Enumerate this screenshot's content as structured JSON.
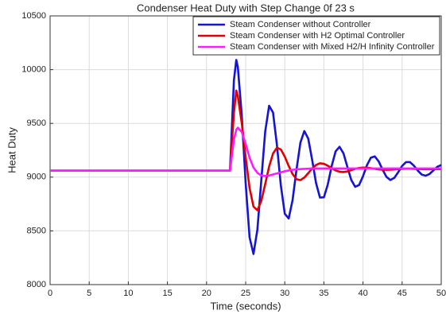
{
  "chart_data": {
    "type": "line",
    "title": "Condenser Heat Duty with Step Change 0f 23 s",
    "xlabel": "Time (seconds)",
    "ylabel": "Heat Duty",
    "x": [
      0,
      23,
      23.5,
      23.8,
      24,
      24.5,
      25,
      25.5,
      26,
      26.5,
      27,
      27.5,
      28,
      28.5,
      29,
      29.5,
      30,
      30.5,
      31,
      31.5,
      32,
      32.5,
      33,
      33.5,
      34,
      34.5,
      35,
      35.5,
      36,
      36.5,
      37,
      37.5,
      38,
      38.5,
      39,
      39.5,
      40,
      40.5,
      41,
      41.5,
      42,
      42.5,
      43,
      43.5,
      44,
      44.5,
      45,
      45.5,
      46,
      46.5,
      47,
      47.5,
      48,
      48.5,
      49,
      49.5,
      50
    ],
    "series": [
      {
        "name": "Steam Condenser without Controller",
        "color": "#1414d2",
        "values": [
          9060,
          9060,
          9900,
          10090,
          10025,
          9577,
          8944,
          8440,
          8285,
          8511,
          8971,
          9425,
          9664,
          9601,
          9298,
          8922,
          8660,
          8615,
          8787,
          9070,
          9322,
          9429,
          9358,
          9161,
          8944,
          8810,
          8812,
          8932,
          9105,
          9240,
          9282,
          9222,
          9096,
          8974,
          8910,
          8927,
          9008,
          9110,
          9181,
          9193,
          9147,
          9070,
          9002,
          8973,
          8993,
          9046,
          9104,
          9140,
          9140,
          9107,
          9061,
          9024,
          9013,
          9029,
          9063,
          9096,
          9113
        ]
      },
      {
        "name": "Steam Condenser with H2 Optimal Controller",
        "color": "#e00000",
        "values": [
          9060,
          9060,
          9600,
          9805,
          9753,
          9504,
          9184,
          8899,
          8726,
          8692,
          8779,
          8935,
          9098,
          9220,
          9274,
          9257,
          9191,
          9104,
          9028,
          8981,
          8972,
          8996,
          9037,
          9081,
          9113,
          9129,
          9124,
          9106,
          9083,
          9062,
          9050,
          9047,
          9053,
          9065,
          9077,
          9085,
          9089,
          9088,
          9083,
          9077,
          9072,
          9069,
          9068,
          9069,
          9072,
          9075,
          9077,
          9078,
          9078,
          9077,
          9076,
          9075,
          9074,
          9074,
          9075,
          9075,
          9076
        ]
      },
      {
        "name": "Steam Condenser with Mixed H2/H Infinity Controller",
        "color": "#ff1aff",
        "values": [
          9060,
          9060,
          9350,
          9440,
          9460,
          9420,
          9310,
          9180,
          9090,
          9040,
          9015,
          9010,
          9015,
          9025,
          9035,
          9045,
          9055,
          9062,
          9068,
          9072,
          9075,
          9077,
          9079,
          9080,
          9080,
          9080,
          9080,
          9080,
          9080,
          9080,
          9080,
          9080,
          9080,
          9080,
          9080,
          9080,
          9080,
          9080,
          9080,
          9080,
          9080,
          9080,
          9080,
          9080,
          9080,
          9080,
          9080,
          9080,
          9080,
          9080,
          9080,
          9080,
          9080,
          9080,
          9080,
          9080,
          9080
        ]
      }
    ],
    "xlim": [
      0,
      50
    ],
    "xticks": [
      0,
      5,
      10,
      15,
      20,
      25,
      30,
      35,
      40,
      45,
      50
    ],
    "ylim": [
      8000,
      10500
    ],
    "yticks": [
      8000,
      8500,
      9000,
      9500,
      10000,
      10500
    ],
    "grid": true,
    "legend": "upper right"
  }
}
